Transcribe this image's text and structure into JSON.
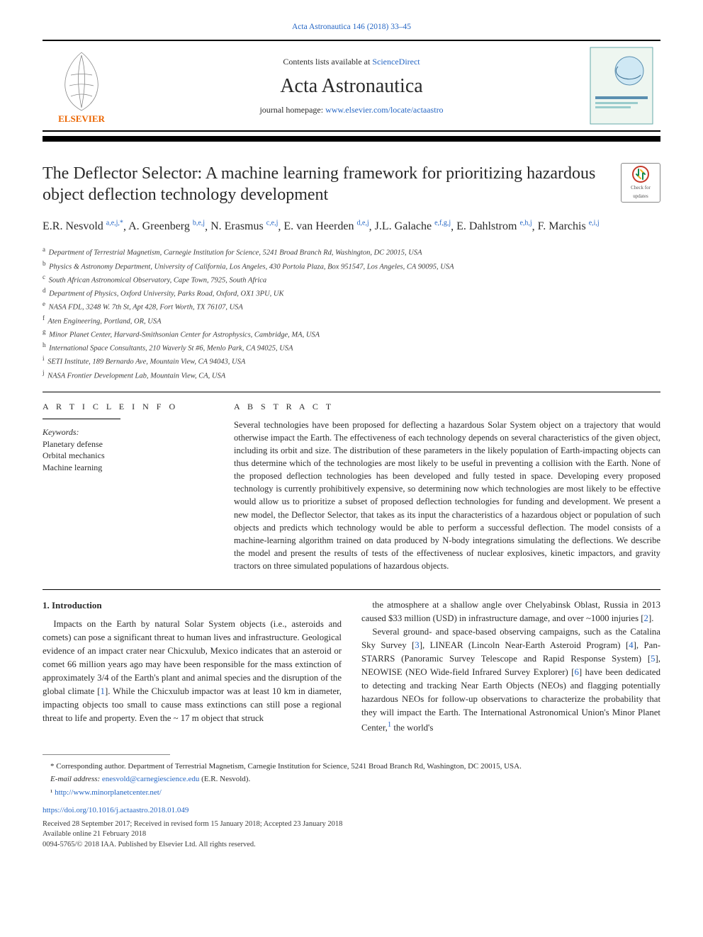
{
  "running_head": "Acta Astronautica 146 (2018) 33–45",
  "banner": {
    "contents_prefix": "Contents lists available at ",
    "contents_link": "ScienceDirect",
    "journal": "Acta Astronautica",
    "homepage_prefix": "journal homepage: ",
    "homepage_link": "www.elsevier.com/locate/actaastro",
    "publisher_label": "ELSEVIER"
  },
  "title": "The Deflector Selector: A machine learning framework for prioritizing hazardous object deflection technology development",
  "updates_badge": {
    "line1": "Check for",
    "line2": "updates"
  },
  "authors_html_parts": [
    {
      "name": "E.R. Nesvold",
      "sup": "a,e,j,*"
    },
    {
      "name": "A. Greenberg",
      "sup": "b,e,j"
    },
    {
      "name": "N. Erasmus",
      "sup": "c,e,j"
    },
    {
      "name": "E. van Heerden",
      "sup": "d,e,j"
    },
    {
      "name": "J.L. Galache",
      "sup": "e,f,g,j"
    },
    {
      "name": "E. Dahlstrom",
      "sup": "e,h,j"
    },
    {
      "name": "F. Marchis",
      "sup": "e,i,j"
    }
  ],
  "affiliations": [
    {
      "key": "a",
      "text": "Department of Terrestrial Magnetism, Carnegie Institution for Science, 5241 Broad Branch Rd, Washington, DC 20015, USA"
    },
    {
      "key": "b",
      "text": "Physics & Astronomy Department, University of California, Los Angeles, 430 Portola Plaza, Box 951547, Los Angeles, CA 90095, USA"
    },
    {
      "key": "c",
      "text": "South African Astronomical Observatory, Cape Town, 7925, South Africa"
    },
    {
      "key": "d",
      "text": "Department of Physics, Oxford University, Parks Road, Oxford, OX1 3PU, UK"
    },
    {
      "key": "e",
      "text": "NASA FDL, 3248 W. 7th St, Apt 428, Fort Worth, TX 76107, USA"
    },
    {
      "key": "f",
      "text": "Aten Engineering, Portland, OR, USA"
    },
    {
      "key": "g",
      "text": "Minor Planet Center, Harvard-Smithsonian Center for Astrophysics, Cambridge, MA, USA"
    },
    {
      "key": "h",
      "text": "International Space Consultants, 210 Waverly St #6, Menlo Park, CA 94025, USA"
    },
    {
      "key": "i",
      "text": "SETI Institute, 189 Bernardo Ave, Mountain View, CA 94043, USA"
    },
    {
      "key": "j",
      "text": "NASA Frontier Development Lab, Mountain View, CA, USA"
    }
  ],
  "article_info_heading": "A R T I C L E   I N F O",
  "abstract_heading": "A B S T R A C T",
  "keywords_label": "Keywords:",
  "keywords": [
    "Planetary defense",
    "Orbital mechanics",
    "Machine learning"
  ],
  "abstract": "Several technologies have been proposed for deflecting a hazardous Solar System object on a trajectory that would otherwise impact the Earth. The effectiveness of each technology depends on several characteristics of the given object, including its orbit and size. The distribution of these parameters in the likely population of Earth-impacting objects can thus determine which of the technologies are most likely to be useful in preventing a collision with the Earth. None of the proposed deflection technologies has been developed and fully tested in space. Developing every proposed technology is currently prohibitively expensive, so determining now which technologies are most likely to be effective would allow us to prioritize a subset of proposed deflection technologies for funding and development. We present a new model, the Deflector Selector, that takes as its input the characteristics of a hazardous object or population of such objects and predicts which technology would be able to perform a successful deflection. The model consists of a machine-learning algorithm trained on data produced by N-body integrations simulating the deflections. We describe the model and present the results of tests of the effectiveness of nuclear explosives, kinetic impactors, and gravity tractors on three simulated populations of hazardous objects.",
  "section1_title": "1.  Introduction",
  "body": {
    "p1": "Impacts on the Earth by natural Solar System objects (i.e., asteroids and comets) can pose a significant threat to human lives and infrastructure. Geological evidence of an impact crater near Chicxulub, Mexico indicates that an asteroid or comet 66 million years ago may have been responsible for the mass extinction of approximately 3/4 of the Earth's plant and animal species and the disruption of the global climate [1]. While the Chicxulub impactor was at least 10 km in diameter, impacting objects too small to cause mass extinctions can still pose a regional threat to life and property. Even the ~ 17 m object that struck",
    "p2": "the atmosphere at a shallow angle over Chelyabinsk Oblast, Russia in 2013 caused $33 million (USD) in infrastructure damage, and over ~1000 injuries [2].",
    "p3": "Several ground- and space-based observing campaigns, such as the Catalina Sky Survey [3], LINEAR (Lincoln Near-Earth Asteroid Program) [4], Pan-STARRS (Panoramic Survey Telescope and Rapid Response System) [5], NEOWISE (NEO Wide-field Infrared Survey Explorer) [6] have been dedicated to detecting and tracking Near Earth Objects (NEOs) and flagging potentially hazardous NEOs for follow-up observations to characterize the probability that they will impact the Earth. The International Astronomical Union's Minor Planet Center,¹ the world's"
  },
  "footnotes": {
    "corr": "* Corresponding author. Department of Terrestrial Magnetism, Carnegie Institution for Science, 5241 Broad Branch Rd, Washington, DC 20015, USA.",
    "email_label": "E-mail address: ",
    "email": "enesvold@carnegiescience.edu",
    "email_paren": " (E.R. Nesvold).",
    "fn1_label": "¹ ",
    "fn1_link": "http://www.minorplanetcenter.net/"
  },
  "doi": "https://doi.org/10.1016/j.actaastro.2018.01.049",
  "history": {
    "l1": "Received 28 September 2017; Received in revised form 15 January 2018; Accepted 23 January 2018",
    "l2": "Available online 21 February 2018",
    "l3": "0094-5765/© 2018 IAA. Published by Elsevier Ltd. All rights reserved."
  },
  "colors": {
    "link": "#2566c4",
    "text": "#2a2a2a",
    "rule": "#000000",
    "elsevier_orange": "#eb6500",
    "badge_ring": "#c53a2b",
    "badge_mark": "#13864a"
  }
}
